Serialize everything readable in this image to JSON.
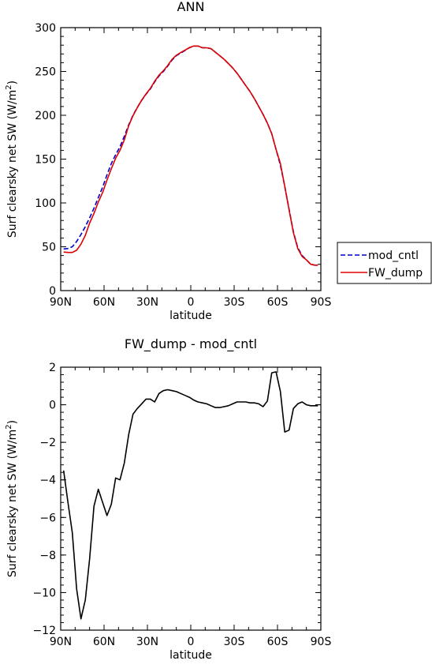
{
  "figure": {
    "top_title": "ANN",
    "bottom_title": "FW_dump - mod_cntl",
    "legend": [
      {
        "label": "mod_cntl",
        "color": "#0000cc",
        "dash": "6,3"
      },
      {
        "label": "FW_dump",
        "color": "#dd0000",
        "dash": ""
      }
    ]
  },
  "chart_data": [
    {
      "type": "line",
      "title": "ANN",
      "xlabel": "latitude",
      "ylabel_main": "Surf clearsky net SW (W/m",
      "ylabel_sup": "2",
      "ylabel_close": ")",
      "xlim": [
        90,
        -90
      ],
      "ylim": [
        0,
        300
      ],
      "xticks": [
        90,
        60,
        30,
        0,
        -30,
        -60,
        -90
      ],
      "xticklabels": [
        "90N",
        "60N",
        "30N",
        "0",
        "30S",
        "60S",
        "90S"
      ],
      "yticks": [
        0,
        50,
        100,
        150,
        200,
        250,
        300
      ],
      "yticklabels": [
        "0",
        "50",
        "100",
        "150",
        "200",
        "250",
        "300"
      ],
      "legend_position": "right",
      "series": [
        {
          "name": "mod_cntl",
          "color": "#0000cc",
          "dash": "6,3",
          "x": [
            88,
            85,
            82,
            79,
            76,
            73,
            70,
            67,
            64,
            61,
            58,
            55,
            52,
            49,
            46,
            43,
            40,
            37,
            34,
            31,
            28,
            25,
            22,
            19,
            16,
            13,
            10,
            7,
            4,
            1,
            -2,
            -5,
            -8,
            -11,
            -14,
            -17,
            -20,
            -23,
            -26,
            -29,
            -32,
            -35,
            -38,
            -41,
            -44,
            -47,
            -50,
            -53,
            -56,
            -59,
            -62,
            -65,
            -68,
            -71,
            -74,
            -77,
            -80,
            -83,
            -86,
            -88
          ],
          "y": [
            47.5,
            48,
            50,
            56,
            64,
            73,
            83,
            94,
            106,
            118,
            132,
            145,
            155,
            164,
            176,
            189,
            200,
            209,
            217,
            224,
            230,
            238,
            245,
            250,
            256,
            263,
            268,
            271,
            274,
            277,
            279,
            279,
            277,
            277,
            276,
            272,
            268,
            264,
            259,
            254,
            248,
            241,
            234,
            227,
            219,
            210,
            201,
            191,
            179,
            161,
            143,
            119,
            93,
            67,
            49,
            40,
            35,
            30,
            29,
            29
          ]
        },
        {
          "name": "FW_dump",
          "color": "#dd0000",
          "dash": "",
          "x": [
            88,
            85,
            82,
            79,
            76,
            73,
            70,
            67,
            64,
            61,
            58,
            55,
            52,
            49,
            46,
            43,
            40,
            37,
            34,
            31,
            28,
            25,
            22,
            19,
            16,
            13,
            10,
            7,
            4,
            1,
            -2,
            -5,
            -8,
            -11,
            -14,
            -17,
            -20,
            -23,
            -26,
            -29,
            -32,
            -35,
            -38,
            -41,
            -44,
            -47,
            -50,
            -53,
            -56,
            -59,
            -62,
            -65,
            -68,
            -71,
            -74,
            -77,
            -80,
            -83,
            -86,
            -88
          ],
          "y": [
            44,
            43.5,
            43.5,
            46,
            53,
            63,
            77,
            88,
            101,
            112,
            126,
            139,
            151,
            160,
            172,
            188,
            199.5,
            208.7,
            217.3,
            224.3,
            230.6,
            238.8,
            245.8,
            250.8,
            256.8,
            263.8,
            268.5,
            271.5,
            274.3,
            277.2,
            279,
            279,
            277,
            277,
            276,
            272,
            268,
            264,
            259,
            254,
            248,
            241,
            234,
            227,
            219,
            210,
            201,
            191,
            179,
            161,
            145,
            119,
            92,
            66,
            48,
            39,
            35,
            30,
            29,
            29
          ]
        }
      ]
    },
    {
      "type": "line",
      "title": "FW_dump - mod_cntl",
      "xlabel": "latitude",
      "ylabel_main": "Surf clearsky net SW (W/m",
      "ylabel_sup": "2",
      "ylabel_close": ")",
      "xlim": [
        90,
        -90
      ],
      "ylim": [
        -12,
        2
      ],
      "xticks": [
        90,
        60,
        30,
        0,
        -30,
        -60,
        -90
      ],
      "xticklabels": [
        "90N",
        "60N",
        "30N",
        "0",
        "30S",
        "60S",
        "90S"
      ],
      "yticks": [
        -12,
        -10,
        -8,
        -6,
        -4,
        -2,
        0,
        2
      ],
      "yticklabels": [
        "−12",
        "−10",
        "−8",
        "−6",
        "−4",
        "−2",
        "0",
        "2"
      ],
      "series": [
        {
          "color": "#000000",
          "dash": "",
          "x": [
            88,
            85,
            82,
            79,
            76,
            73,
            70,
            67,
            64,
            61,
            58,
            55,
            52,
            49,
            46,
            43,
            40,
            37,
            34,
            31,
            28,
            25,
            22,
            19,
            16,
            13,
            10,
            7,
            4,
            1,
            -2,
            -5,
            -8,
            -11,
            -14,
            -17,
            -20,
            -23,
            -26,
            -29,
            -32,
            -35,
            -38,
            -41,
            -44,
            -47,
            -50,
            -53,
            -56,
            -59,
            -62,
            -65,
            -68,
            -71,
            -74,
            -77,
            -80,
            -83,
            -86,
            -88
          ],
          "y": [
            -3.5,
            -5.2,
            -6.8,
            -9.8,
            -11.4,
            -10.4,
            -8.2,
            -5.4,
            -4.5,
            -5.2,
            -5.9,
            -5.3,
            -3.9,
            -4.0,
            -3.1,
            -1.6,
            -0.5,
            -0.2,
            0.05,
            0.3,
            0.3,
            0.15,
            0.6,
            0.75,
            0.8,
            0.75,
            0.7,
            0.6,
            0.5,
            0.4,
            0.25,
            0.15,
            0.1,
            0.05,
            -0.05,
            -0.15,
            -0.15,
            -0.1,
            -0.05,
            0.05,
            0.15,
            0.15,
            0.15,
            0.1,
            0.1,
            0.05,
            -0.1,
            0.2,
            1.7,
            1.75,
            0.7,
            -1.45,
            -1.35,
            -0.2,
            0.05,
            0.15,
            0.0,
            -0.05,
            -0.05,
            -0.05
          ]
        }
      ]
    }
  ]
}
